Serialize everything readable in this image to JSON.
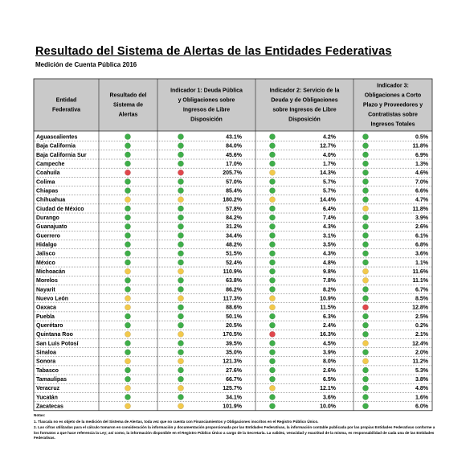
{
  "header": {
    "title": "Resultado del Sistema de Alertas de las Entidades Federativas",
    "subtitle": "Medición de Cuenta Pública 2016"
  },
  "table": {
    "headers": [
      [
        "Entidad",
        "Federativa"
      ],
      [
        "Resultado del",
        "Sistema de",
        "Alertas"
      ],
      [
        "Indicador 1: Deuda Pública",
        "y Obligaciones sobre",
        "Ingresos de Libre",
        "Disposición"
      ],
      [
        "Indicador 2: Servicio de la",
        "Deuda y de Obligaciones",
        "sobre Ingresos de Libre",
        "Disposición"
      ],
      [
        "Indicador 3:",
        "Obligaciones a Corto",
        "Plazo y Proveedores y",
        "Contratistas sobre",
        "Ingresos Totales"
      ]
    ],
    "rows": [
      {
        "name": "Aguascalientes",
        "lights": [
          "#3fae49",
          "#3fae49",
          "#3fae49",
          "#3fae49"
        ],
        "values": [
          "43.1%",
          "4.2%",
          "0.5%"
        ]
      },
      {
        "name": "Baja California",
        "lights": [
          "#3fae49",
          "#3fae49",
          "#3fae49",
          "#3fae49"
        ],
        "values": [
          "84.0%",
          "12.7%",
          "11.8%"
        ]
      },
      {
        "name": "Baja California Sur",
        "lights": [
          "#3fae49",
          "#3fae49",
          "#3fae49",
          "#3fae49"
        ],
        "values": [
          "45.6%",
          "4.0%",
          "6.9%"
        ]
      },
      {
        "name": "Campeche",
        "lights": [
          "#3fae49",
          "#3fae49",
          "#3fae49",
          "#3fae49"
        ],
        "values": [
          "17.0%",
          "1.7%",
          "1.3%"
        ]
      },
      {
        "name": "Coahuila",
        "lights": [
          "#e0474c",
          "#e0474c",
          "#f2c94c",
          "#3fae49"
        ],
        "values": [
          "205.7%",
          "14.3%",
          "4.6%"
        ]
      },
      {
        "name": "Colima",
        "lights": [
          "#3fae49",
          "#3fae49",
          "#3fae49",
          "#3fae49"
        ],
        "values": [
          "57.0%",
          "5.7%",
          "7.0%"
        ]
      },
      {
        "name": "Chiapas",
        "lights": [
          "#3fae49",
          "#3fae49",
          "#3fae49",
          "#3fae49"
        ],
        "values": [
          "85.4%",
          "5.7%",
          "6.6%"
        ]
      },
      {
        "name": "Chihuahua",
        "lights": [
          "#f2c94c",
          "#f2c94c",
          "#f2c94c",
          "#3fae49"
        ],
        "values": [
          "180.2%",
          "14.4%",
          "4.7%"
        ]
      },
      {
        "name": "Ciudad de México",
        "lights": [
          "#3fae49",
          "#3fae49",
          "#3fae49",
          "#f2c94c"
        ],
        "values": [
          "57.8%",
          "6.4%",
          "11.8%"
        ]
      },
      {
        "name": "Durango",
        "lights": [
          "#3fae49",
          "#3fae49",
          "#3fae49",
          "#3fae49"
        ],
        "values": [
          "84.2%",
          "7.4%",
          "3.9%"
        ]
      },
      {
        "name": "Guanajuato",
        "lights": [
          "#3fae49",
          "#3fae49",
          "#3fae49",
          "#3fae49"
        ],
        "values": [
          "31.2%",
          "4.3%",
          "2.6%"
        ]
      },
      {
        "name": "Guerrero",
        "lights": [
          "#3fae49",
          "#3fae49",
          "#3fae49",
          "#3fae49"
        ],
        "values": [
          "34.4%",
          "3.1%",
          "6.1%"
        ]
      },
      {
        "name": "Hidalgo",
        "lights": [
          "#3fae49",
          "#3fae49",
          "#3fae49",
          "#3fae49"
        ],
        "values": [
          "48.2%",
          "3.5%",
          "6.8%"
        ]
      },
      {
        "name": "Jalisco",
        "lights": [
          "#3fae49",
          "#3fae49",
          "#3fae49",
          "#3fae49"
        ],
        "values": [
          "51.5%",
          "4.3%",
          "3.6%"
        ]
      },
      {
        "name": "México",
        "lights": [
          "#3fae49",
          "#3fae49",
          "#3fae49",
          "#3fae49"
        ],
        "values": [
          "52.4%",
          "4.8%",
          "1.1%"
        ]
      },
      {
        "name": "Michoacán",
        "lights": [
          "#f2c94c",
          "#f2c94c",
          "#3fae49",
          "#f2c94c"
        ],
        "values": [
          "110.9%",
          "9.8%",
          "11.6%"
        ]
      },
      {
        "name": "Morelos",
        "lights": [
          "#3fae49",
          "#3fae49",
          "#3fae49",
          "#f2c94c"
        ],
        "values": [
          "63.8%",
          "7.8%",
          "11.1%"
        ]
      },
      {
        "name": "Nayarit",
        "lights": [
          "#3fae49",
          "#3fae49",
          "#3fae49",
          "#3fae49"
        ],
        "values": [
          "86.2%",
          "8.2%",
          "6.7%"
        ]
      },
      {
        "name": "Nuevo León",
        "lights": [
          "#f2c94c",
          "#f2c94c",
          "#f2c94c",
          "#3fae49"
        ],
        "values": [
          "117.3%",
          "10.9%",
          "8.5%"
        ]
      },
      {
        "name": "Oaxaca",
        "lights": [
          "#f2c94c",
          "#3fae49",
          "#f2c94c",
          "#e0474c"
        ],
        "values": [
          "88.6%",
          "11.5%",
          "12.8%"
        ]
      },
      {
        "name": "Puebla",
        "lights": [
          "#3fae49",
          "#3fae49",
          "#3fae49",
          "#3fae49"
        ],
        "values": [
          "50.1%",
          "6.3%",
          "2.5%"
        ]
      },
      {
        "name": "Querétaro",
        "lights": [
          "#3fae49",
          "#3fae49",
          "#3fae49",
          "#3fae49"
        ],
        "values": [
          "20.5%",
          "2.4%",
          "0.2%"
        ]
      },
      {
        "name": "Quintana Roo",
        "lights": [
          "#f2c94c",
          "#f2c94c",
          "#e0474c",
          "#3fae49"
        ],
        "values": [
          "170.5%",
          "16.3%",
          "2.1%"
        ]
      },
      {
        "name": "San Luis Potosí",
        "lights": [
          "#3fae49",
          "#3fae49",
          "#3fae49",
          "#f2c94c"
        ],
        "values": [
          "39.5%",
          "4.5%",
          "12.4%"
        ]
      },
      {
        "name": "Sinaloa",
        "lights": [
          "#3fae49",
          "#3fae49",
          "#3fae49",
          "#3fae49"
        ],
        "values": [
          "35.0%",
          "3.9%",
          "2.0%"
        ]
      },
      {
        "name": "Sonora",
        "lights": [
          "#f2c94c",
          "#f2c94c",
          "#3fae49",
          "#f2c94c"
        ],
        "values": [
          "121.3%",
          "8.0%",
          "11.2%"
        ]
      },
      {
        "name": "Tabasco",
        "lights": [
          "#3fae49",
          "#3fae49",
          "#3fae49",
          "#3fae49"
        ],
        "values": [
          "27.6%",
          "2.6%",
          "5.3%"
        ]
      },
      {
        "name": "Tamaulipas",
        "lights": [
          "#3fae49",
          "#3fae49",
          "#3fae49",
          "#3fae49"
        ],
        "values": [
          "66.7%",
          "6.5%",
          "3.8%"
        ]
      },
      {
        "name": "Veracruz",
        "lights": [
          "#f2c94c",
          "#f2c94c",
          "#f2c94c",
          "#3fae49"
        ],
        "values": [
          "125.7%",
          "12.1%",
          "4.8%"
        ]
      },
      {
        "name": "Yucatán",
        "lights": [
          "#3fae49",
          "#3fae49",
          "#3fae49",
          "#3fae49"
        ],
        "values": [
          "34.1%",
          "3.6%",
          "1.6%"
        ]
      },
      {
        "name": "Zacatecas",
        "lights": [
          "#f2c94c",
          "#f2c94c",
          "#3fae49",
          "#3fae49"
        ],
        "values": [
          "101.9%",
          "10.0%",
          "6.0%"
        ]
      }
    ]
  },
  "notes": {
    "title": "Notas:",
    "items": [
      "1. Tlaxcala no es objeto de la medición del Sistema de Alertas, toda vez que no cuenta con Financiamientos y Obligaciones inscritos en el Registro Público Único.",
      "2. Las cifras utilizadas para el cálculo tomaron en consideración la información y documentación proporcionada por las Entidades Federativas, la información contable publicada por las propias Entidades Federativas conforme a los formatos a que hace referencia la Ley; así como, la información disponible en el Registro Público Único a cargo de la Secretaría. La validez, veracidad y exactitud de la misma, es responsabilidad de cada una de las Entidades Federativas."
    ]
  }
}
